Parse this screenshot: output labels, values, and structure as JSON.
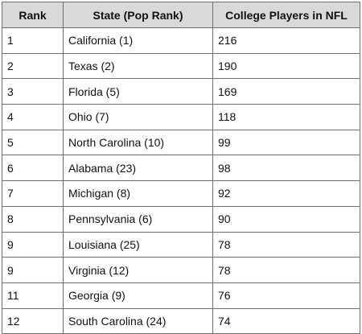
{
  "chart_data": {
    "type": "table",
    "columns": [
      "Rank",
      "State (Pop Rank)",
      "College Players in NFL"
    ],
    "rows": [
      [
        "1",
        "California (1)",
        "216"
      ],
      [
        "2",
        "Texas (2)",
        "190"
      ],
      [
        "3",
        "Florida (5)",
        "169"
      ],
      [
        "4",
        "Ohio (7)",
        "118"
      ],
      [
        "5",
        "North Carolina (10)",
        "99"
      ],
      [
        "6",
        "Alabama (23)",
        "98"
      ],
      [
        "7",
        "Michigan (8)",
        "92"
      ],
      [
        "8",
        "Pennsylvania (6)",
        "90"
      ],
      [
        "9",
        "Louisiana (25)",
        "78"
      ],
      [
        "9",
        "Virginia (12)",
        "78"
      ],
      [
        "11",
        "Georgia (9)",
        "76"
      ],
      [
        "12",
        "South Carolina (24)",
        "74"
      ]
    ],
    "header_background": "#d9d9d9",
    "border_color": "#6e6e6e"
  }
}
